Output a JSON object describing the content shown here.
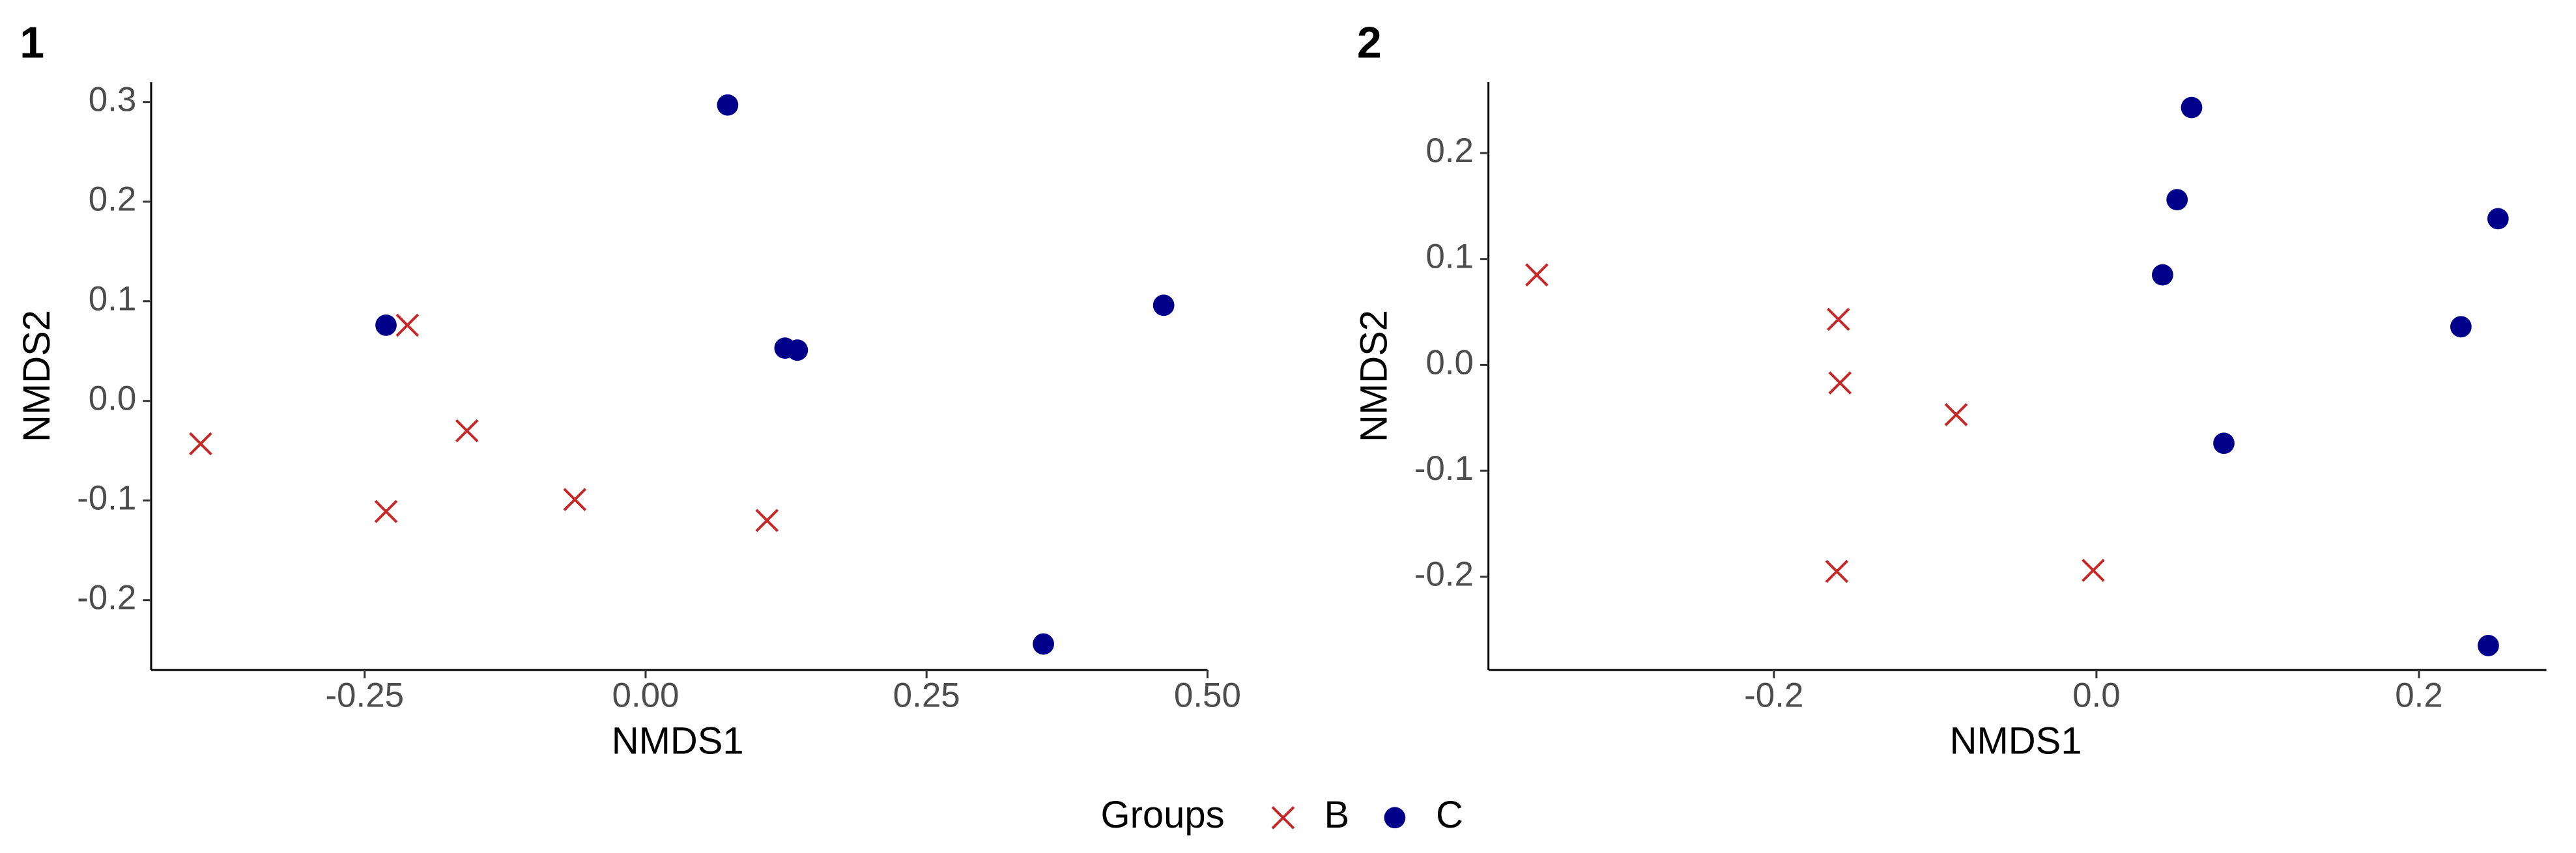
{
  "chart_data": [
    {
      "type": "scatter",
      "title": "1",
      "x_label": "NMDS1",
      "y_label": "NMDS2",
      "xlim": [
        -0.44,
        0.5
      ],
      "ylim": [
        -0.27,
        0.32
      ],
      "xticks": [
        {
          "value": -0.25,
          "label": "-0.25"
        },
        {
          "value": 0,
          "label": "0.00"
        },
        0.25,
        {
          "value": 0.5,
          "label": "0.50"
        }
      ],
      "yticks": [
        -0.2,
        -0.1,
        {
          "value": 0,
          "label": "0.0"
        },
        0.1,
        0.2,
        0.3
      ],
      "series": [
        {
          "name": "B",
          "color": "#c62828",
          "marker": "x",
          "x": [
            -0.396,
            -0.212,
            -0.159,
            -0.231,
            -0.063,
            0.108
          ],
          "y": [
            -0.043,
            0.076,
            -0.03,
            -0.111,
            -0.099,
            -0.12
          ]
        },
        {
          "name": "C",
          "color": "#00008b",
          "marker": "circle",
          "x": [
            -0.231,
            0.073,
            0.124,
            0.135,
            0.461,
            0.354
          ],
          "y": [
            0.076,
            0.297,
            0.053,
            0.051,
            0.096,
            -0.244
          ]
        }
      ]
    },
    {
      "type": "scatter",
      "title": "2",
      "x_label": "NMDS1",
      "y_label": "NMDS2",
      "xlim": [
        -0.377,
        0.279
      ],
      "ylim": [
        -0.288,
        0.267
      ],
      "xticks": [
        -0.2,
        {
          "value": 0,
          "label": "0.0"
        },
        0.2
      ],
      "yticks": [
        -0.2,
        -0.1,
        {
          "value": 0,
          "label": "0.0"
        },
        0.1,
        0.2
      ],
      "series": [
        {
          "name": "B",
          "color": "#c62828",
          "marker": "x",
          "x": [
            -0.347,
            -0.16,
            -0.159,
            -0.087,
            -0.161,
            -0.002
          ],
          "y": [
            0.085,
            0.043,
            -0.017,
            -0.047,
            -0.195,
            -0.194
          ]
        },
        {
          "name": "C",
          "color": "#00008b",
          "marker": "circle",
          "x": [
            0.059,
            0.05,
            0.041,
            0.249,
            0.226,
            0.079,
            0.243
          ],
          "y": [
            0.243,
            0.156,
            0.085,
            0.138,
            0.036,
            -0.074,
            -0.265
          ]
        }
      ]
    }
  ],
  "legend": {
    "title": "Groups",
    "position": "bottom"
  }
}
